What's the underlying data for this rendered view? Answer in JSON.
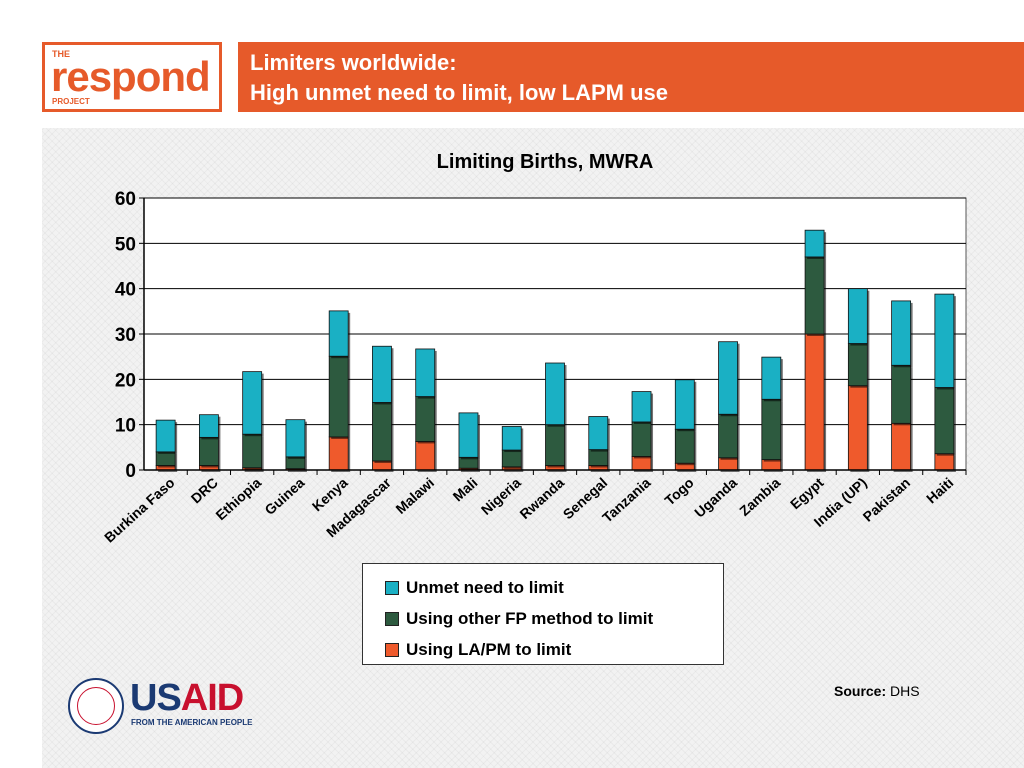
{
  "logo": {
    "the": "THE",
    "word": "respond",
    "project": "PROJECT"
  },
  "header": {
    "line1": "Limiters worldwide:",
    "line2": "High unmet need to limit, low LAPM use"
  },
  "colors": {
    "accent": "#e65a2a",
    "unmet": "#1ab0c4",
    "other_fp": "#2d5a3f",
    "lapm": "#ef5a2c"
  },
  "chart_data": {
    "type": "bar",
    "stacked": true,
    "title": "Limiting Births, MWRA",
    "xlabel": "",
    "ylabel": "",
    "ylim": [
      0,
      60
    ],
    "yticks": [
      0,
      10,
      20,
      30,
      40,
      50,
      60
    ],
    "grid": true,
    "legend_position": "bottom",
    "categories": [
      "Burkina Faso",
      "DRC",
      "Ethiopia",
      "Guinea",
      "Kenya",
      "Madagascar",
      "Malawi",
      "Mali",
      "Nigeria",
      "Rwanda",
      "Senegal",
      "Tanzania",
      "Togo",
      "Uganda",
      "Zambia",
      "Egypt",
      "India (UP)",
      "Pakistan",
      "Haiti"
    ],
    "series": [
      {
        "name": "Using LA/PM to limit",
        "color": "#ef5a2c",
        "values": [
          1.0,
          1.0,
          0.5,
          0.3,
          7.3,
          2.0,
          6.3,
          0.4,
          0.7,
          1.0,
          1.0,
          3.0,
          1.5,
          2.7,
          2.3,
          30.0,
          18.6,
          10.3,
          3.6
        ]
      },
      {
        "name": "Using other FP method to limit",
        "color": "#2d5a3f",
        "values": [
          3.0,
          6.2,
          7.4,
          2.6,
          17.8,
          12.9,
          9.9,
          2.4,
          3.7,
          9.0,
          3.5,
          7.6,
          7.5,
          9.6,
          13.3,
          17.0,
          9.3,
          12.8,
          14.6
        ]
      },
      {
        "name": "Unmet need to limit",
        "color": "#1ab0c4",
        "values": [
          7.0,
          5.0,
          13.8,
          8.2,
          10.0,
          12.4,
          10.5,
          9.8,
          5.2,
          13.6,
          7.3,
          6.7,
          10.9,
          16.0,
          9.3,
          5.9,
          12.1,
          14.2,
          20.6
        ]
      }
    ]
  },
  "legend": {
    "items": [
      {
        "label": "Unmet need to limit",
        "color": "#1ab0c4"
      },
      {
        "label": "Using other FP method to limit",
        "color": "#2d5a3f"
      },
      {
        "label": "Using LA/PM to limit",
        "color": "#ef5a2c"
      }
    ]
  },
  "footer": {
    "usaid_us": "US",
    "usaid_aid": "AID",
    "usaid_tagline": "FROM THE AMERICAN PEOPLE",
    "source_label": "Source:",
    "source_value": "DHS"
  }
}
